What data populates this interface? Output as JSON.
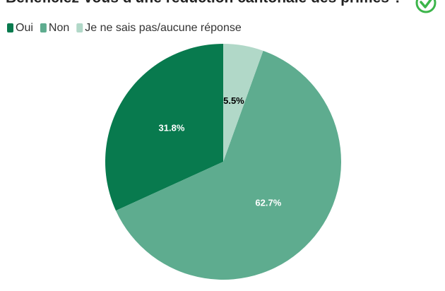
{
  "chart_data": {
    "type": "pie",
    "title": "Bénéficiez-vous d'une réduction cantonale des primes ?",
    "categories": [
      "Oui",
      "Non",
      "Je ne sais pas/aucune réponse"
    ],
    "values": [
      31.8,
      62.7,
      5.5
    ],
    "value_labels": [
      "31.8%",
      "62.7%",
      "5.5%"
    ],
    "colors": [
      "#087a4e",
      "#5eac8f",
      "#b1d8c8"
    ]
  }
}
